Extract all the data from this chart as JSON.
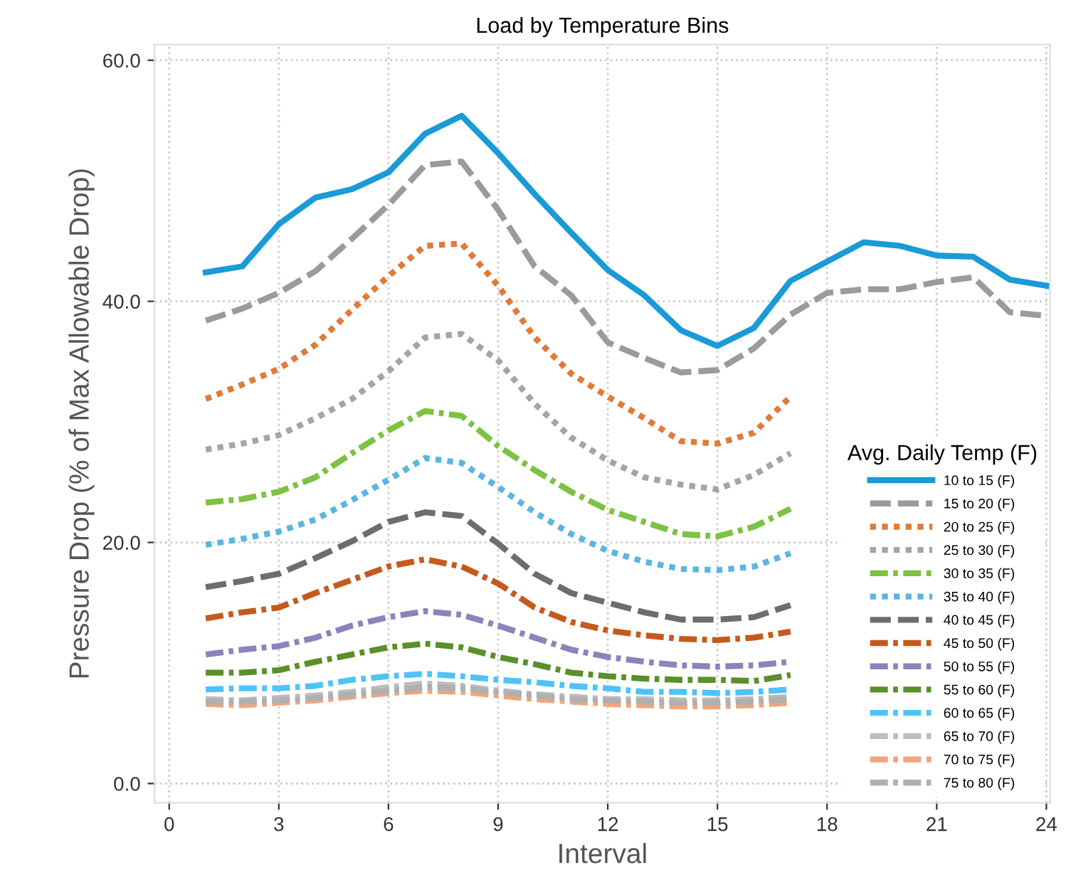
{
  "chart_data": {
    "type": "line",
    "title": "Load by Temperature Bins",
    "xlabel": "Interval",
    "ylabel": "Pressure Drop (% of Max Allowable Drop)",
    "legend_title": "Avg. Daily Temp (F)",
    "x": [
      1,
      2,
      3,
      4,
      5,
      6,
      7,
      8,
      9,
      10,
      11,
      12,
      13,
      14,
      15,
      16,
      17,
      18,
      19,
      20,
      21,
      22,
      23,
      24
    ],
    "xlim": [
      -0.4,
      24.1
    ],
    "xticks": [
      0,
      3,
      6,
      9,
      12,
      15,
      18,
      21,
      24
    ],
    "ylim": [
      -1.6,
      61.3
    ],
    "yticks": [
      {
        "value": 0,
        "label": "0.0"
      },
      {
        "value": 20,
        "label": "20.0"
      },
      {
        "value": 40,
        "label": "40.0"
      },
      {
        "value": 60,
        "label": "60.0"
      }
    ],
    "grid": true,
    "legend": "lower right",
    "marker": "none",
    "series": [
      {
        "name": "10 to 15 (F)",
        "color": "#1a9bd7",
        "line_style": "solid",
        "values": [
          42.4,
          42.9,
          46.4,
          48.6,
          49.3,
          50.7,
          53.9,
          55.4,
          52.3,
          48.9,
          45.7,
          42.6,
          40.5,
          37.6,
          36.3,
          37.8,
          41.7,
          43.3,
          44.9,
          44.6,
          43.8,
          43.7,
          41.8,
          41.3
        ]
      },
      {
        "name": "15 to 20 (F)",
        "color": "#9b9b9b",
        "line_style": "dashed",
        "values": [
          38.4,
          39.4,
          40.7,
          42.5,
          45.2,
          48.0,
          51.3,
          51.6,
          47.6,
          42.9,
          40.5,
          36.6,
          35.3,
          34.1,
          34.3,
          36.1,
          38.9,
          40.7,
          41.0,
          41.0,
          41.6,
          42.0,
          39.1,
          38.8
        ]
      },
      {
        "name": "20 to 25 (F)",
        "color": "#e07b39",
        "line_style": "dotted",
        "values": [
          31.9,
          33.1,
          34.4,
          36.4,
          39.3,
          42.1,
          44.6,
          44.8,
          41.3,
          37.0,
          34.0,
          32.1,
          30.3,
          28.4,
          28.2,
          29.1,
          32.1,
          null,
          null,
          null,
          null,
          null,
          null,
          null
        ]
      },
      {
        "name": "25 to 30 (F)",
        "color": "#a5a5a5",
        "line_style": "dotted",
        "values": [
          27.7,
          28.2,
          28.9,
          30.3,
          31.9,
          34.2,
          37.0,
          37.3,
          35.1,
          31.5,
          28.7,
          26.8,
          25.4,
          24.8,
          24.4,
          25.6,
          27.4,
          null,
          null,
          null,
          null,
          null,
          null,
          null
        ]
      },
      {
        "name": "30 to 35 (F)",
        "color": "#7dc242",
        "line_style": "dashdot",
        "values": [
          23.3,
          23.6,
          24.2,
          25.4,
          27.4,
          29.3,
          30.9,
          30.5,
          28.0,
          26.0,
          24.2,
          22.7,
          21.7,
          20.7,
          20.5,
          21.3,
          22.8,
          null,
          null,
          null,
          null,
          null,
          null,
          null
        ]
      },
      {
        "name": "35 to 40 (F)",
        "color": "#5bb5e0",
        "line_style": "dotted",
        "values": [
          19.8,
          20.3,
          20.9,
          21.9,
          23.5,
          25.2,
          27.0,
          26.6,
          24.6,
          22.5,
          20.7,
          19.3,
          18.4,
          17.8,
          17.7,
          18.0,
          19.1,
          null,
          null,
          null,
          null,
          null,
          null,
          null
        ]
      },
      {
        "name": "40 to 45 (F)",
        "color": "#6d6d6d",
        "line_style": "dashed",
        "values": [
          16.3,
          16.8,
          17.4,
          18.7,
          20.1,
          21.7,
          22.5,
          22.2,
          19.9,
          17.4,
          15.8,
          15.0,
          14.2,
          13.6,
          13.6,
          13.8,
          14.8,
          null,
          null,
          null,
          null,
          null,
          null,
          null
        ]
      },
      {
        "name": "45 to 50 (F)",
        "color": "#c55a1d",
        "line_style": "dashdot",
        "values": [
          13.7,
          14.2,
          14.6,
          15.8,
          16.9,
          18.0,
          18.6,
          18.0,
          16.6,
          14.6,
          13.4,
          12.7,
          12.3,
          12.0,
          11.9,
          12.1,
          12.6,
          null,
          null,
          null,
          null,
          null,
          null,
          null
        ]
      },
      {
        "name": "50 to 55 (F)",
        "color": "#8f82bc",
        "line_style": "dashdot",
        "values": [
          10.7,
          11.1,
          11.4,
          12.1,
          13.1,
          13.8,
          14.3,
          14.0,
          13.1,
          12.1,
          11.1,
          10.5,
          10.1,
          9.8,
          9.7,
          9.8,
          10.1,
          null,
          null,
          null,
          null,
          null,
          null,
          null
        ]
      },
      {
        "name": "55 to 60 (F)",
        "color": "#5a8f29",
        "line_style": "dashdot",
        "values": [
          9.2,
          9.2,
          9.4,
          10.1,
          10.7,
          11.3,
          11.6,
          11.3,
          10.5,
          9.9,
          9.2,
          8.9,
          8.7,
          8.6,
          8.6,
          8.5,
          9.0,
          null,
          null,
          null,
          null,
          null,
          null,
          null
        ]
      },
      {
        "name": "60 to 65 (F)",
        "color": "#4fc3f7",
        "line_style": "dashdot",
        "values": [
          7.8,
          7.9,
          7.9,
          8.1,
          8.6,
          8.9,
          9.1,
          8.9,
          8.6,
          8.4,
          8.1,
          7.9,
          7.6,
          7.6,
          7.5,
          7.6,
          7.8,
          null,
          null,
          null,
          null,
          null,
          null,
          null
        ]
      },
      {
        "name": "65 to 70 (F)",
        "color": "#bdbdbd",
        "line_style": "dashdot",
        "values": [
          7.0,
          6.9,
          7.1,
          7.3,
          7.6,
          8.0,
          8.3,
          8.1,
          7.7,
          7.4,
          7.2,
          7.0,
          7.0,
          6.9,
          6.9,
          7.0,
          7.2,
          null,
          null,
          null,
          null,
          null,
          null,
          null
        ]
      },
      {
        "name": "70 to 75 (F)",
        "color": "#f0a57c",
        "line_style": "dashdot",
        "values": [
          6.6,
          6.5,
          6.7,
          6.9,
          7.2,
          7.5,
          7.7,
          7.6,
          7.3,
          7.0,
          6.8,
          6.6,
          6.5,
          6.4,
          6.4,
          6.5,
          6.7,
          null,
          null,
          null,
          null,
          null,
          null,
          null
        ]
      },
      {
        "name": "75 to 80 (F)",
        "color": "#b0b0b0",
        "line_style": "dashdot",
        "values": [
          6.8,
          6.8,
          6.9,
          7.1,
          7.4,
          7.7,
          8.0,
          7.9,
          7.6,
          7.3,
          7.0,
          6.9,
          6.8,
          6.7,
          6.7,
          6.8,
          7.0,
          null,
          null,
          null,
          null,
          null,
          null,
          null
        ]
      }
    ]
  }
}
